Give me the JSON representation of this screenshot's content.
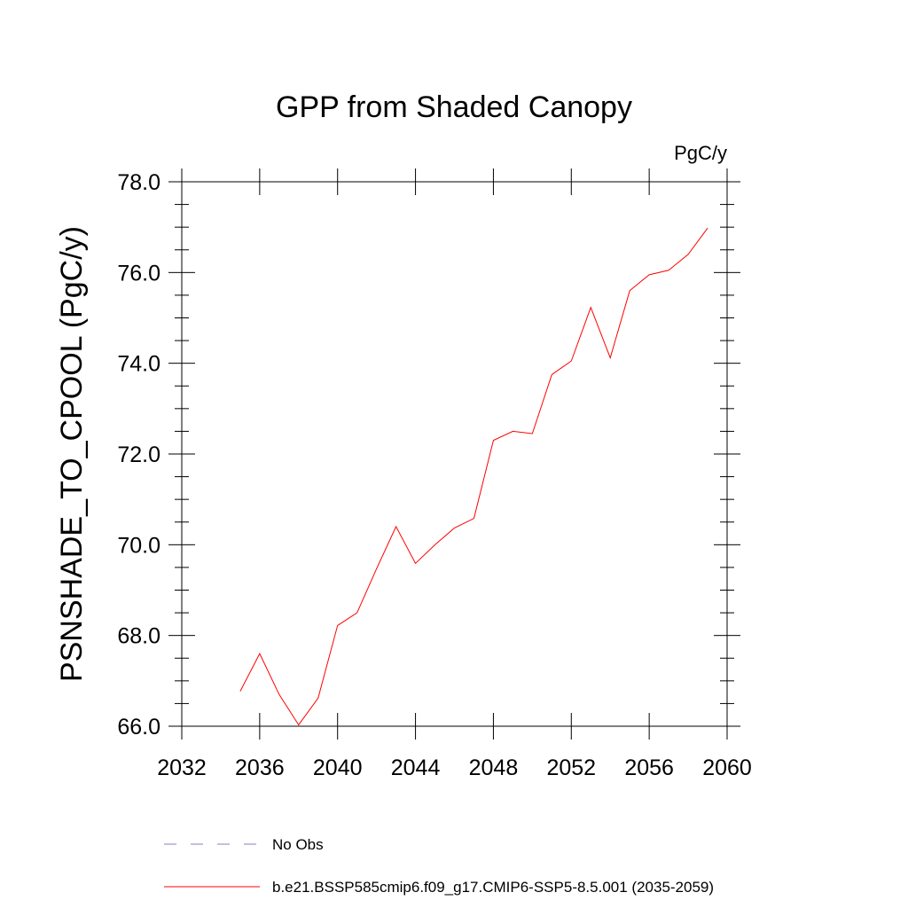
{
  "chart_data": {
    "type": "line",
    "title": "GPP from Shaded Canopy",
    "units_label": "PgC/y",
    "ylabel": "PSNSHADE_TO_CPOOL  (PgC/y)",
    "xlabel": "",
    "xlim": [
      2032,
      2060
    ],
    "ylim": [
      66.0,
      78.0
    ],
    "x_ticks": [
      2032,
      2036,
      2040,
      2044,
      2048,
      2052,
      2056,
      2060
    ],
    "x_tick_labels": [
      "2032",
      "2036",
      "2040",
      "2044",
      "2048",
      "2052",
      "2056",
      "2060"
    ],
    "y_ticks": [
      66,
      68,
      70,
      72,
      74,
      76,
      78
    ],
    "y_tick_labels": [
      "66.0",
      "68.0",
      "70.0",
      "72.0",
      "74.0",
      "76.0",
      "78.0"
    ],
    "grid": false,
    "legend_position": "bottom",
    "series": [
      {
        "name": "b.e21.BSSP585cmip6.f09_g17.CMIP6-SSP5-8.5.001 (2035-2059)",
        "color": "#ff0000",
        "x": [
          2035,
          2036,
          2037,
          2038,
          2039,
          2040,
          2041,
          2042,
          2043,
          2044,
          2045,
          2046,
          2047,
          2048,
          2049,
          2050,
          2051,
          2052,
          2053,
          2054,
          2055,
          2056,
          2057,
          2058,
          2059
        ],
        "y": [
          66.77,
          67.6,
          66.7,
          66.03,
          66.62,
          68.22,
          68.5,
          69.47,
          70.4,
          69.59,
          70.0,
          70.37,
          70.58,
          72.3,
          72.5,
          72.45,
          73.75,
          74.05,
          75.23,
          74.12,
          75.6,
          75.95,
          76.05,
          76.4,
          76.98
        ]
      }
    ],
    "legend": [
      {
        "label": "No Obs",
        "color": "#8a7fc0",
        "style": "dashed"
      },
      {
        "label": "b.e21.BSSP585cmip6.f09_g17.CMIP6-SSP5-8.5.001 (2035-2059)",
        "color": "#ff0000",
        "style": "solid"
      }
    ]
  }
}
